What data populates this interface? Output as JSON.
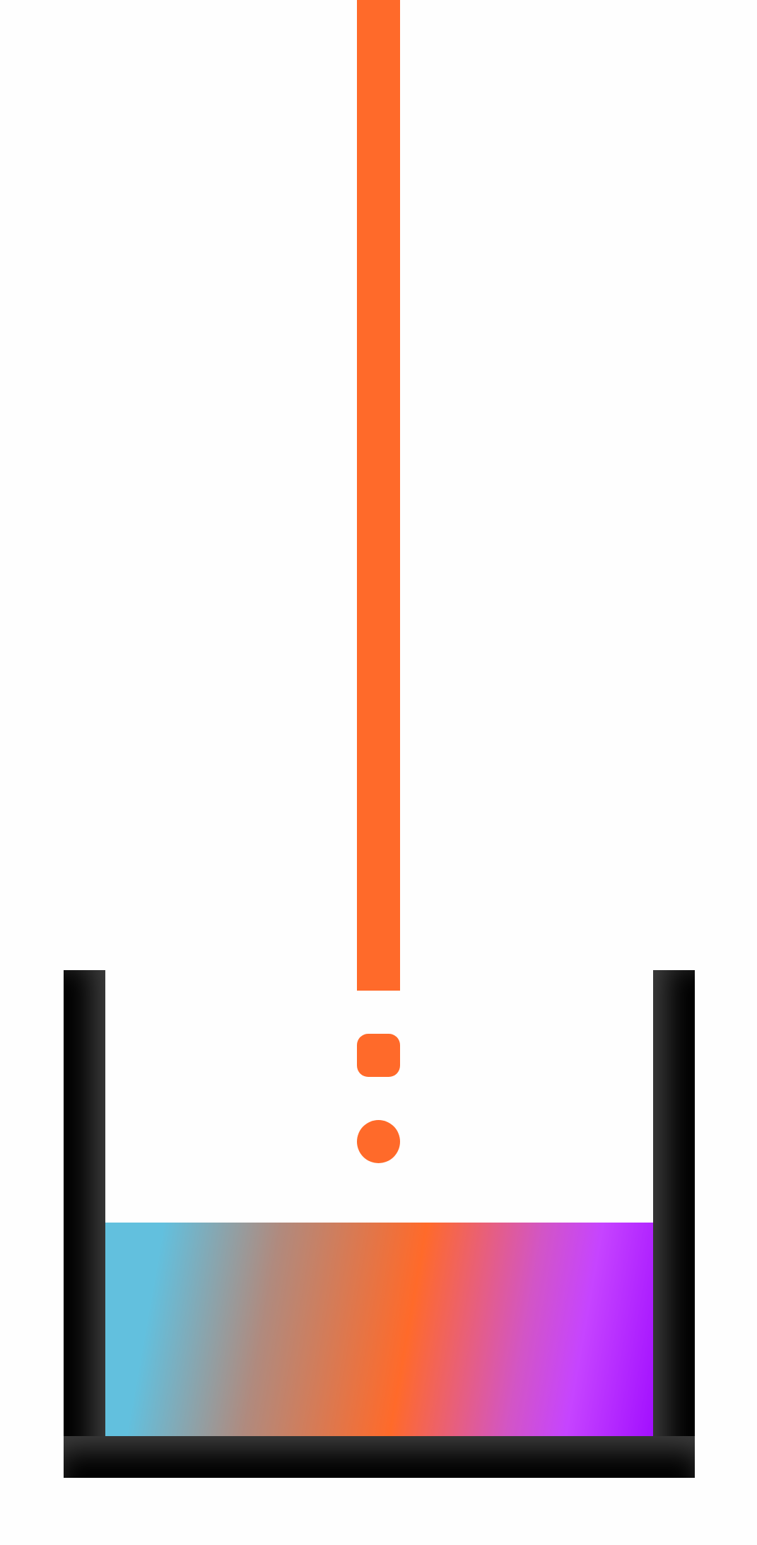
{
  "scene": {
    "colors": {
      "background": "#fefefe",
      "accent": "#ff6a2a",
      "container": "#000000",
      "liquid_gradient": [
        "#62c0de",
        "#ff6a2a",
        "#c644ff",
        "#a20fff"
      ]
    },
    "elements": {
      "stream_icon": "pouring-stream",
      "drop_1_icon": "rounded-square-drop",
      "drop_2_icon": "circle-drop",
      "container_icon": "beaker-container",
      "liquid_icon": "gradient-liquid"
    },
    "fill_level": 0.44
  }
}
